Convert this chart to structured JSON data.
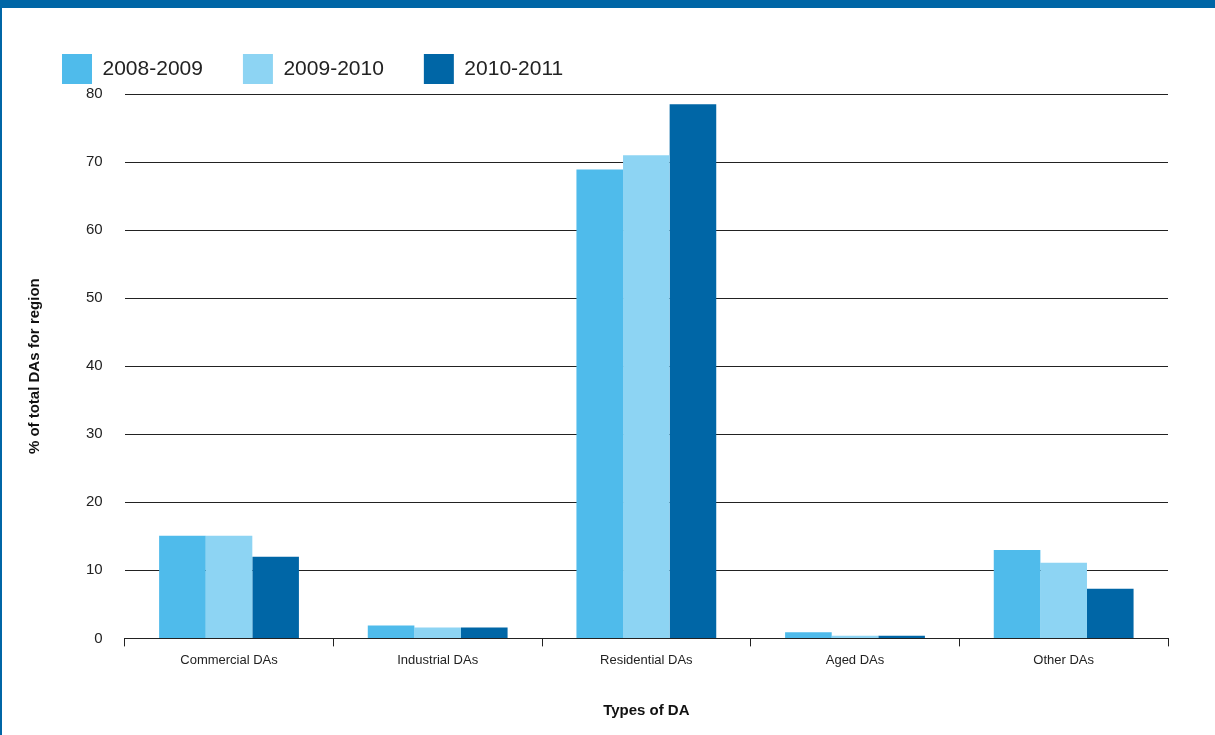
{
  "chart_data": {
    "type": "bar",
    "xlabel": "Types of DA",
    "ylabel": "% of total DAs for region",
    "categories": [
      "Commercial DAs",
      "Industrial DAs",
      "Residential DAs",
      "Aged DAs",
      "Other DAs"
    ],
    "series": [
      {
        "name": "2008-2009",
        "color": "#4fbbeb",
        "values": [
          15.1,
          1.9,
          68.9,
          0.9,
          13
        ]
      },
      {
        "name": "2009-2010",
        "color": "#8dd4f3",
        "values": [
          15.1,
          1.6,
          71,
          0.4,
          11.1
        ]
      },
      {
        "name": "2010-2011",
        "color": "#0066a6",
        "values": [
          12,
          1.6,
          78.5,
          0.4,
          7.3
        ]
      }
    ],
    "ylim": [
      0,
      80
    ],
    "yticks": [
      0,
      10,
      20,
      30,
      40,
      50,
      60,
      70,
      80
    ],
    "grid": "y",
    "legend": "top left"
  }
}
